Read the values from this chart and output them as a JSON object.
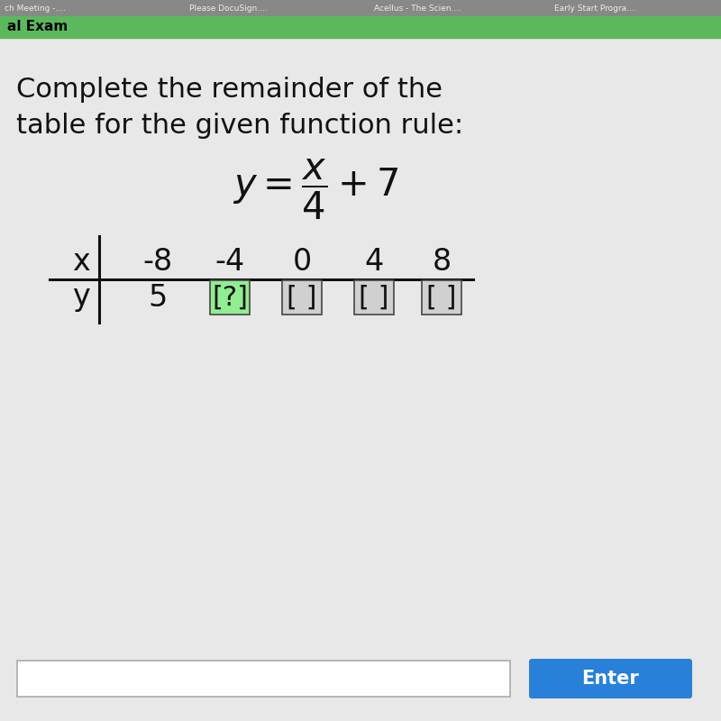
{
  "background_color": "#e8e8e8",
  "top_browser_bar_color": "#555555",
  "top_green_bar_color": "#5cb85c",
  "top_bar_text": "al Exam",
  "browser_tab_texts": [
    "ch Meeting -....",
    "Please DocuSign....",
    "Acellus - The Scien....",
    "Early Start Progra...."
  ],
  "title_line1": "Complete the remainder of the",
  "title_line2": "table for the given function rule:",
  "x_label": "x",
  "y_label": "y",
  "x_values": [
    "-8",
    "-4",
    "0",
    "4",
    "8"
  ],
  "y_first_value": "5",
  "highlight_color": "#90EE90",
  "box_fill_color": "#d0d0d0",
  "box_border_color": "#444444",
  "enter_button_color": "#2980d9",
  "enter_button_text": "Enter",
  "title_fontsize": 22,
  "table_fontsize": 24,
  "formula_fontsize": 30
}
